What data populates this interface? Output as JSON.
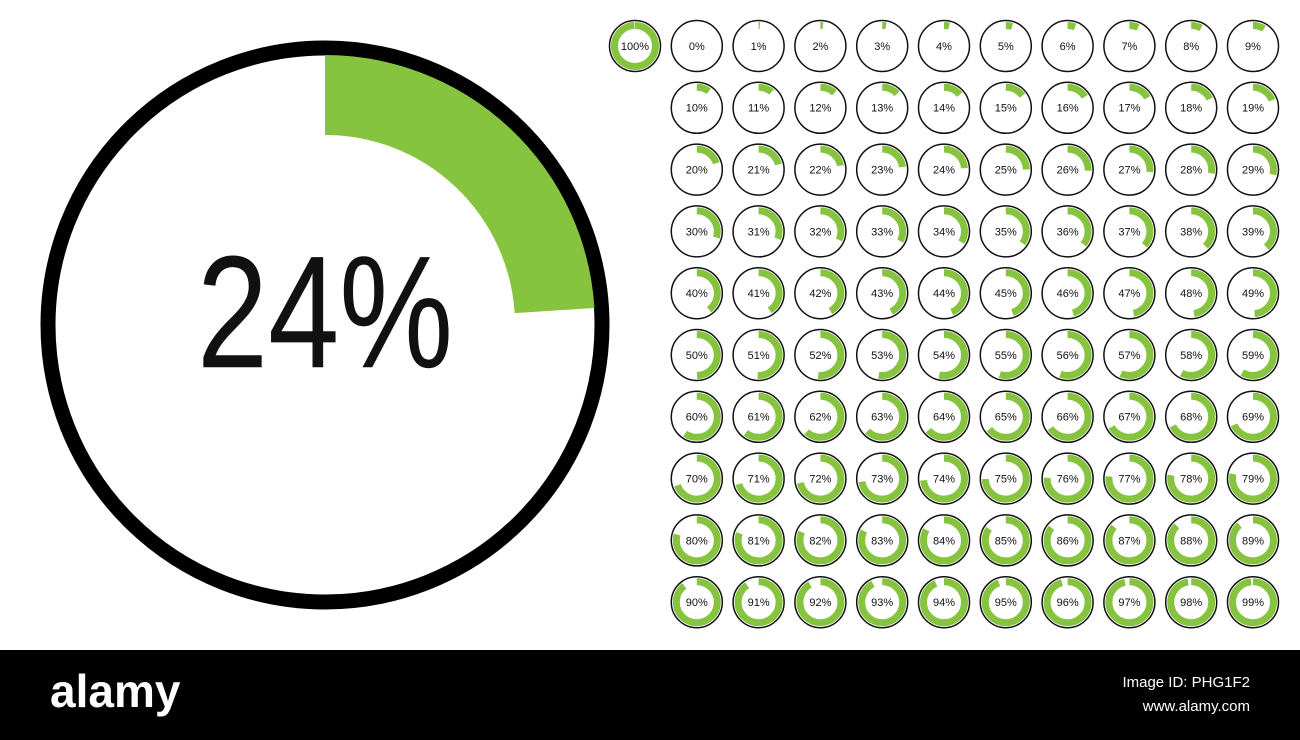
{
  "featured": {
    "value": 24,
    "label": "24%"
  },
  "icons": {
    "values": [
      100,
      0,
      1,
      2,
      3,
      4,
      5,
      6,
      7,
      8,
      9,
      10,
      11,
      12,
      13,
      14,
      15,
      16,
      17,
      18,
      19,
      20,
      21,
      22,
      23,
      24,
      25,
      26,
      27,
      28,
      29,
      30,
      31,
      32,
      33,
      34,
      35,
      36,
      37,
      38,
      39,
      40,
      41,
      42,
      43,
      44,
      45,
      46,
      47,
      48,
      49,
      50,
      51,
      52,
      53,
      54,
      55,
      56,
      57,
      58,
      59,
      60,
      61,
      62,
      63,
      64,
      65,
      66,
      67,
      68,
      69,
      70,
      71,
      72,
      73,
      74,
      75,
      76,
      77,
      78,
      79,
      80,
      81,
      82,
      83,
      84,
      85,
      86,
      87,
      88,
      89,
      90,
      91,
      92,
      93,
      94,
      95,
      96,
      97,
      98,
      99
    ],
    "labels": [
      "100%",
      "0%",
      "1%",
      "2%",
      "3%",
      "4%",
      "5%",
      "6%",
      "7%",
      "8%",
      "9%",
      "10%",
      "11%",
      "12%",
      "13%",
      "14%",
      "15%",
      "16%",
      "17%",
      "18%",
      "19%",
      "20%",
      "21%",
      "22%",
      "23%",
      "24%",
      "25%",
      "26%",
      "27%",
      "28%",
      "29%",
      "30%",
      "31%",
      "32%",
      "33%",
      "34%",
      "35%",
      "36%",
      "37%",
      "38%",
      "39%",
      "40%",
      "41%",
      "42%",
      "43%",
      "44%",
      "45%",
      "46%",
      "47%",
      "48%",
      "49%",
      "50%",
      "51%",
      "52%",
      "53%",
      "54%",
      "55%",
      "56%",
      "57%",
      "58%",
      "59%",
      "60%",
      "61%",
      "62%",
      "63%",
      "64%",
      "65%",
      "66%",
      "67%",
      "68%",
      "69%",
      "70%",
      "71%",
      "72%",
      "73%",
      "74%",
      "75%",
      "76%",
      "77%",
      "78%",
      "79%",
      "80%",
      "81%",
      "82%",
      "83%",
      "84%",
      "85%",
      "86%",
      "87%",
      "88%",
      "89%",
      "90%",
      "91%",
      "92%",
      "93%",
      "94%",
      "95%",
      "96%",
      "97%",
      "98%",
      "99%"
    ]
  },
  "footer": {
    "brand": "alamy",
    "image_id": "Image ID: PHG1F2",
    "url": "www.alamy.com"
  }
}
